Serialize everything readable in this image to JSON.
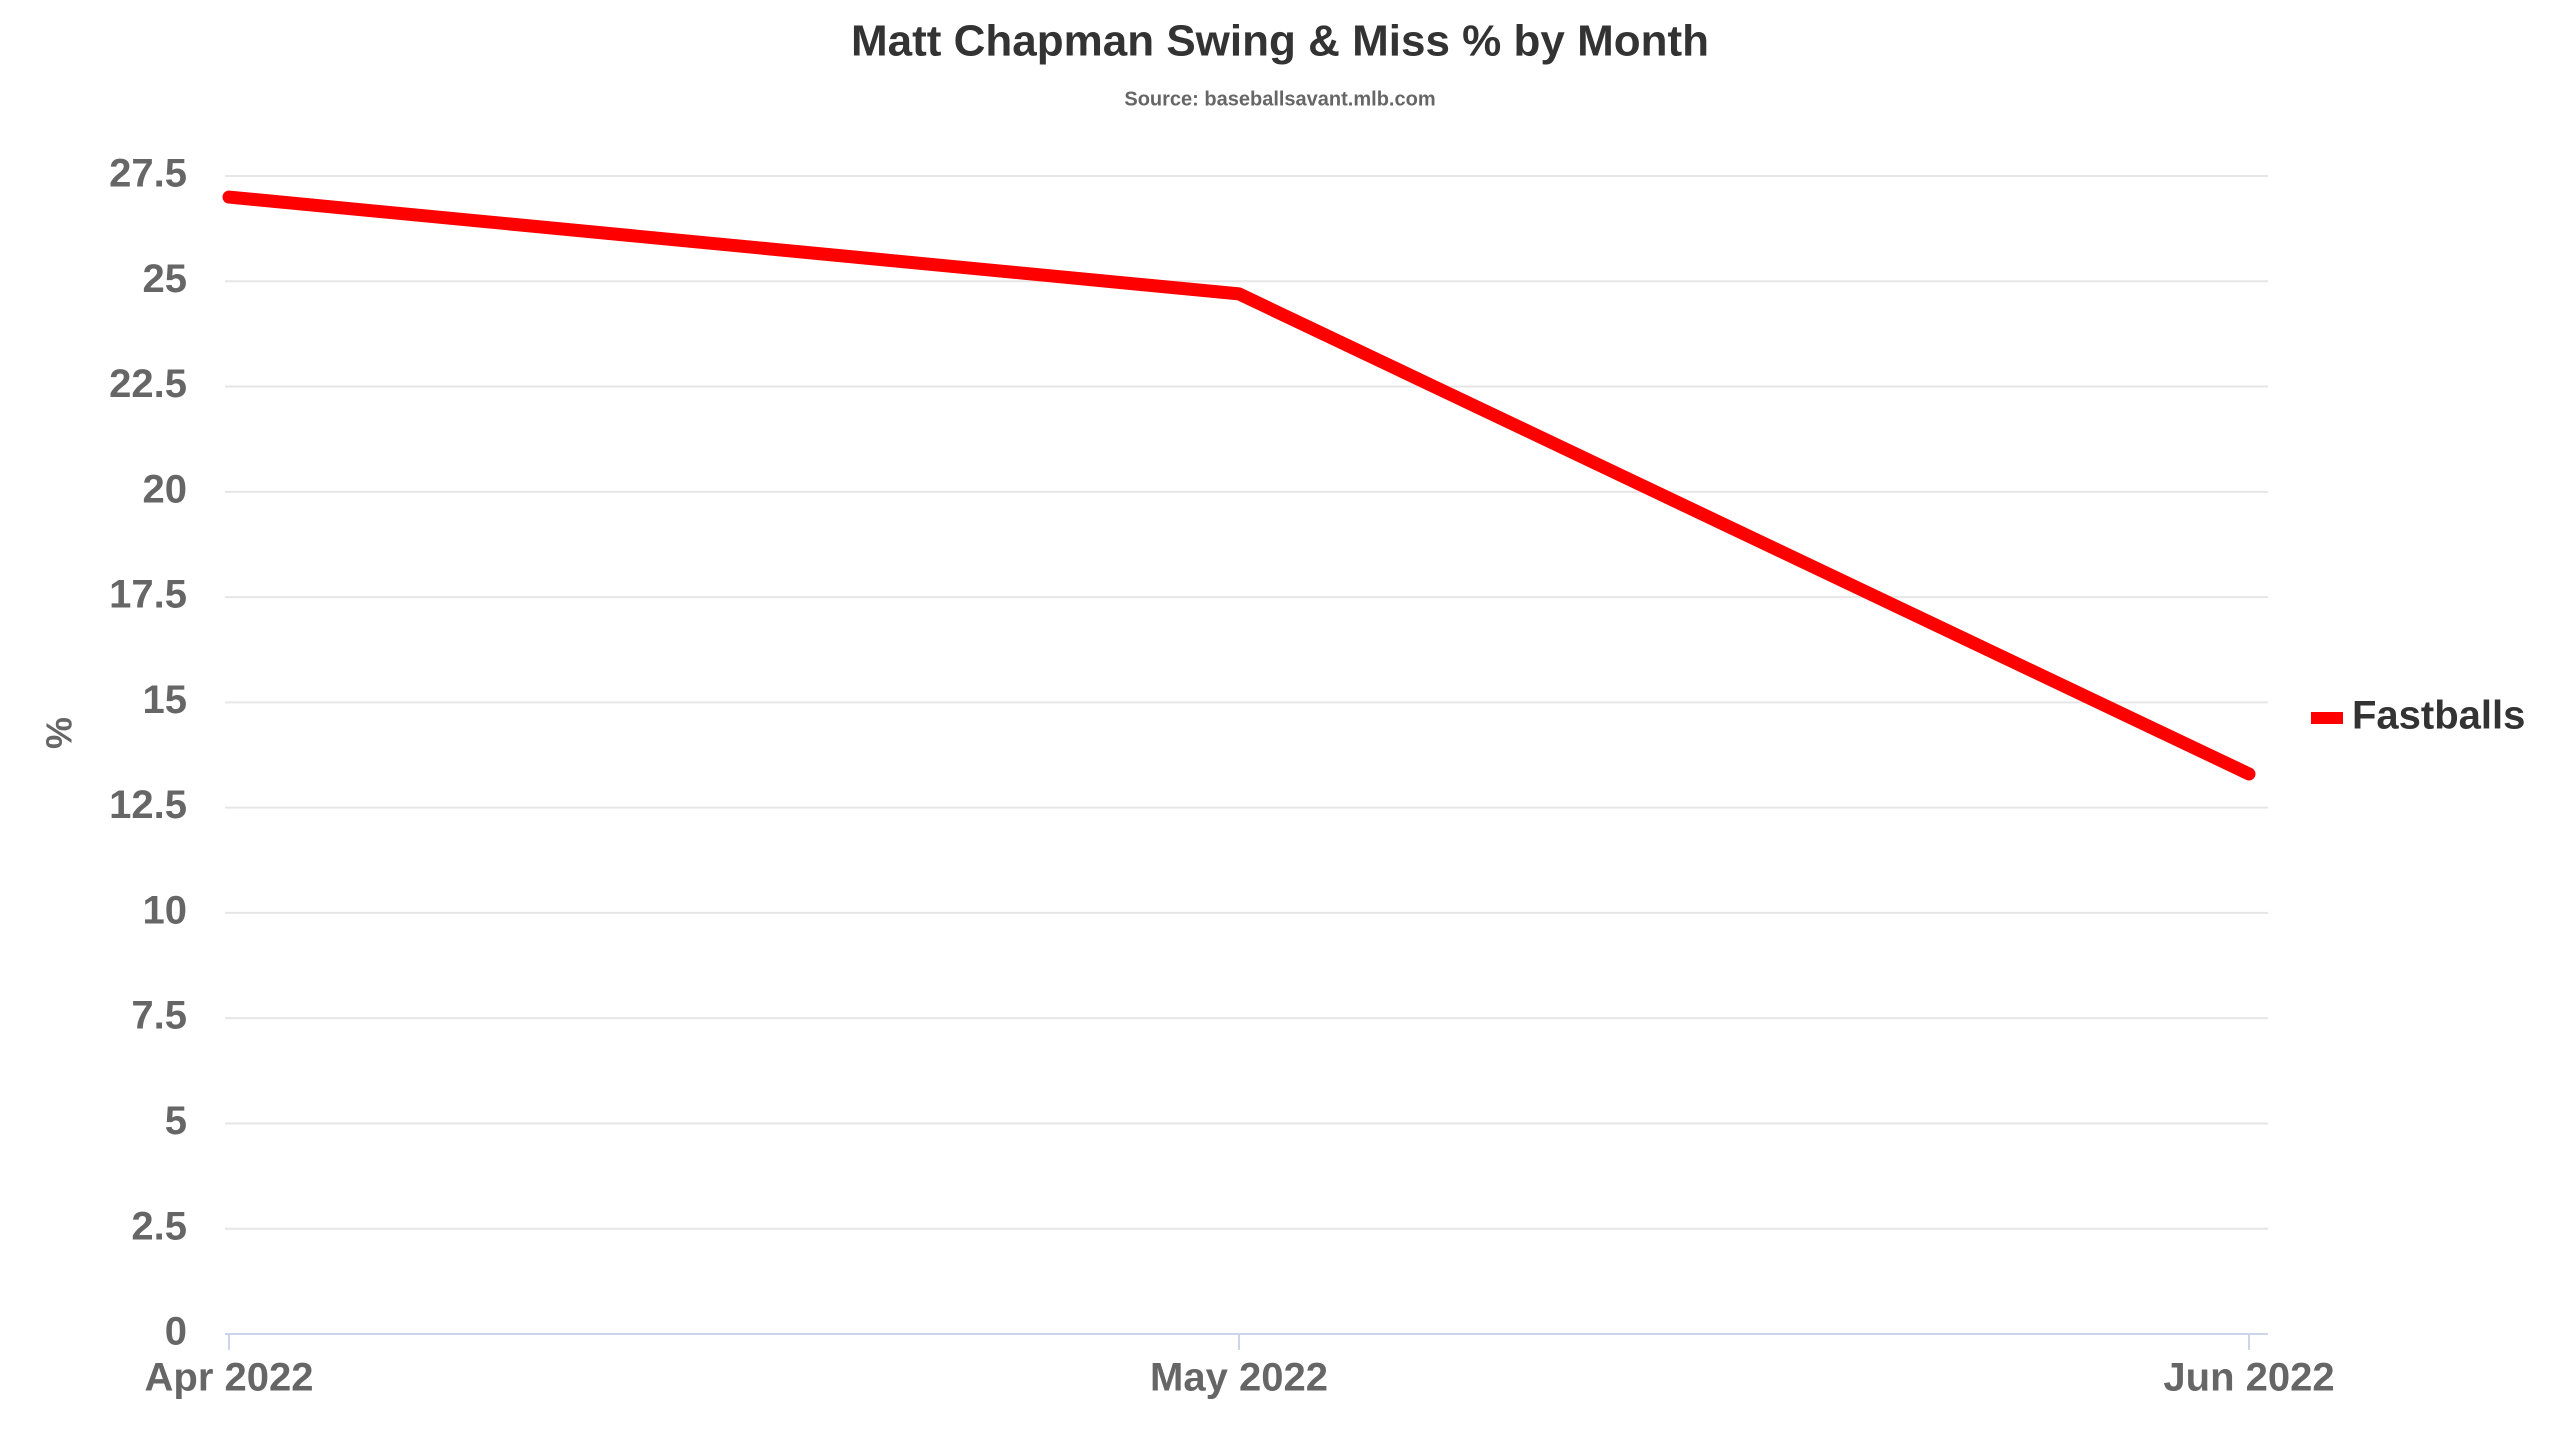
{
  "chart_data": {
    "type": "line",
    "title": "Matt Chapman Swing & Miss % by Month",
    "subtitle": "Source: baseballsavant.mlb.com",
    "y_label": "%",
    "categories": [
      "Apr 2022",
      "May 2022",
      "Jun 2022"
    ],
    "series": [
      {
        "name": "Fastballs",
        "color": "#ff0000",
        "values": [
          27.0,
          24.7,
          13.3
        ]
      }
    ],
    "ylim": [
      0,
      27.5
    ],
    "yticks": [
      0,
      2.5,
      5,
      7.5,
      10,
      12.5,
      15,
      17.5,
      20,
      22.5,
      25,
      27.5
    ],
    "grid": true,
    "legend": "right"
  }
}
